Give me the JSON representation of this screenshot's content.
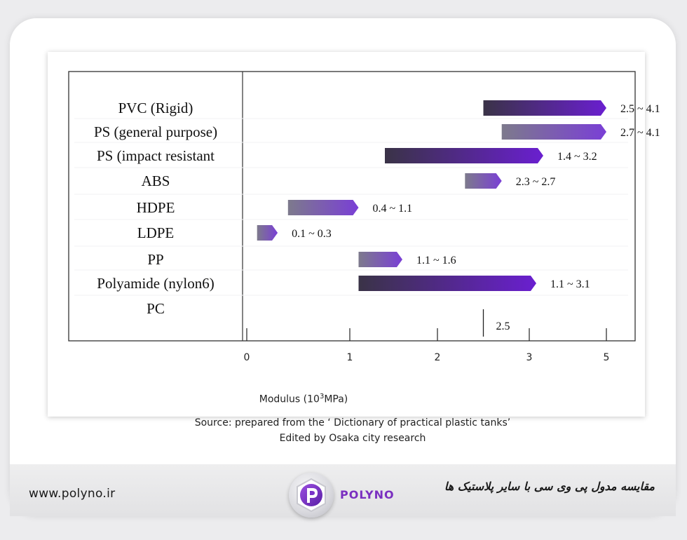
{
  "chart_data": {
    "type": "bar",
    "orientation": "horizontal-range",
    "categories": [
      "PVC  (Rigid)",
      "PS (general purpose)",
      "PS (impact resistant",
      "ABS",
      "HDPE",
      "LDPE",
      "PP",
      "Polyamide (nylon6)",
      "PC"
    ],
    "ranges": [
      [
        2.5,
        4.1
      ],
      [
        2.7,
        4.1
      ],
      [
        1.4,
        3.2
      ],
      [
        2.3,
        2.7
      ],
      [
        0.4,
        1.1
      ],
      [
        0.1,
        0.3
      ],
      [
        1.1,
        1.6
      ],
      [
        1.1,
        3.1
      ],
      [
        2.5,
        2.5
      ]
    ],
    "value_labels": [
      "2.5 ~ 4.1",
      "2.7 ~ 4.1",
      "1.4 ~ 3.2",
      "2.3 ~ 2.7",
      "0.4 ~ 1.1",
      "0.1 ~ 0.3",
      "1.1 ~ 1.6",
      "1.1 ~ 3.1",
      "2.5"
    ],
    "x_ticks": [
      "0",
      "1",
      "2",
      "3",
      "5"
    ],
    "xlabel_prefix": "Modulus (10",
    "xlabel_exp": "3",
    "xlabel_suffix": "MPa)",
    "grid": false,
    "legend": "none",
    "colors": {
      "dark_start": "#3a3347",
      "dark_end": "#6a1fd0",
      "light_start": "#7d7a8c",
      "light_end": "#7a3fd6"
    }
  },
  "source": {
    "line1": "Source: prepared from the ‘ Dictionary of practical plastic tanks’",
    "line2": "Edited by Osaka city research"
  },
  "footer": {
    "website": "www.polyno.ir",
    "brand": "POLYNO",
    "title": "مقایسه مدول پی وی سی با سایر پلاستیک ها"
  }
}
